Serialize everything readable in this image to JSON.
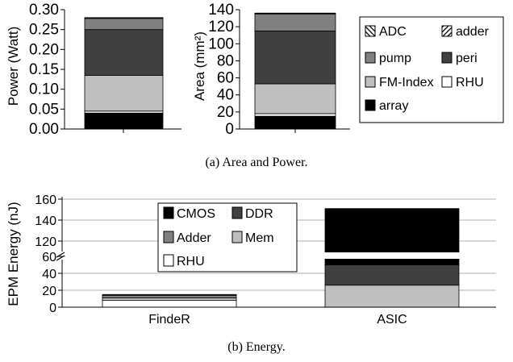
{
  "chart_data": [
    {
      "type": "bar",
      "stacked": true,
      "ylabel": "Power (Watt)",
      "ylim": [
        0,
        0.3
      ],
      "yticks": [
        "0.00",
        "0.05",
        "0.10",
        "0.15",
        "0.20",
        "0.25",
        "0.30"
      ],
      "series": [
        {
          "name": "array",
          "values": [
            0.04
          ],
          "color": "#000000"
        },
        {
          "name": "RHU",
          "values": [
            0.005
          ],
          "color": "#ffffff"
        },
        {
          "name": "FM-Index",
          "values": [
            0.09
          ],
          "color": "#bfbfbf"
        },
        {
          "name": "peri",
          "values": [
            0.115
          ],
          "color": "#404040"
        },
        {
          "name": "pump",
          "values": [
            0.028
          ],
          "color": "#808080"
        },
        {
          "name": "ADC",
          "values": [
            0.001
          ],
          "color": "#ffffff",
          "pattern": "back-hatch"
        },
        {
          "name": "adder",
          "values": [
            0.001
          ],
          "color": "#ffffff",
          "pattern": "fwd-hatch"
        }
      ]
    },
    {
      "type": "bar",
      "stacked": true,
      "ylabel": "Area (mm²)",
      "ylim": [
        0,
        140
      ],
      "yticks": [
        "0",
        "20",
        "40",
        "60",
        "80",
        "100",
        "120",
        "140"
      ],
      "series": [
        {
          "name": "array",
          "values": [
            15
          ],
          "color": "#000000"
        },
        {
          "name": "RHU",
          "values": [
            3
          ],
          "color": "#ffffff"
        },
        {
          "name": "FM-Index",
          "values": [
            35
          ],
          "color": "#bfbfbf"
        },
        {
          "name": "peri",
          "values": [
            62
          ],
          "color": "#404040"
        },
        {
          "name": "pump",
          "values": [
            20
          ],
          "color": "#808080"
        },
        {
          "name": "ADC",
          "values": [
            0.5
          ],
          "color": "#ffffff",
          "pattern": "back-hatch"
        },
        {
          "name": "adder",
          "values": [
            0.5
          ],
          "color": "#ffffff",
          "pattern": "fwd-hatch"
        }
      ]
    },
    {
      "type": "bar",
      "stacked": true,
      "broken_axis": true,
      "ylabel": "EPM Energy (nJ)",
      "categories": [
        "FindeR",
        "ASIC"
      ],
      "yticks_lower": [
        "0",
        "20",
        "40",
        "60"
      ],
      "yticks_upper": [
        "120",
        "140",
        "160"
      ],
      "ylim_lower": [
        0,
        60
      ],
      "ylim_upper": [
        120,
        160
      ],
      "series": [
        {
          "name": "RHU",
          "values": [
            8,
            0
          ],
          "color": "#ffffff"
        },
        {
          "name": "Mem",
          "values": [
            3,
            26
          ],
          "color": "#bfbfbf"
        },
        {
          "name": "Adder",
          "values": [
            3,
            0
          ],
          "color": "#808080"
        },
        {
          "name": "DDR",
          "values": [
            1,
            24
          ],
          "color": "#404040"
        },
        {
          "name": "CMOS",
          "values": [
            0,
            101
          ],
          "color": "#000000"
        }
      ]
    }
  ],
  "legend_a": [
    {
      "label": "ADC",
      "fill": "hatch-back"
    },
    {
      "label": "adder",
      "fill": "hatch-fwd"
    },
    {
      "label": "pump",
      "fill": "#808080"
    },
    {
      "label": "peri",
      "fill": "#404040"
    },
    {
      "label": "FM-Index",
      "fill": "#bfbfbf"
    },
    {
      "label": "RHU",
      "fill": "#ffffff"
    },
    {
      "label": "array",
      "fill": "#000000"
    }
  ],
  "legend_b": [
    {
      "label": "CMOS",
      "fill": "#000000"
    },
    {
      "label": "DDR",
      "fill": "#404040"
    },
    {
      "label": "Adder",
      "fill": "#808080"
    },
    {
      "label": "Mem",
      "fill": "#bfbfbf"
    },
    {
      "label": "RHU",
      "fill": "#ffffff"
    }
  ],
  "captions": {
    "a": "(a) Area and Power.",
    "b": "(b) Energy."
  }
}
